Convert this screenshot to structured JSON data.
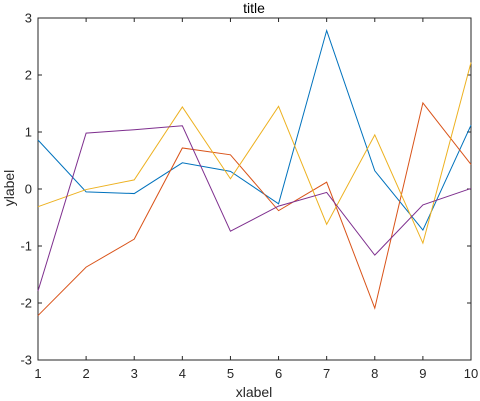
{
  "chart_data": {
    "type": "line",
    "title": "title",
    "xlabel": "xlabel",
    "ylabel": "ylabel",
    "xlim": [
      1,
      10
    ],
    "ylim": [
      -3,
      3
    ],
    "x": [
      1,
      2,
      3,
      4,
      5,
      6,
      7,
      8,
      9,
      10
    ],
    "xticks": [
      "1",
      "2",
      "3",
      "4",
      "5",
      "6",
      "7",
      "8",
      "9",
      "10"
    ],
    "yticks": [
      "-3",
      "-2",
      "-1",
      "0",
      "1",
      "2",
      "3"
    ],
    "grid": false,
    "box": true,
    "series": [
      {
        "color": "#0072BD",
        "values": [
          0.86,
          -0.05,
          -0.08,
          0.46,
          0.31,
          -0.26,
          2.78,
          0.32,
          -0.72,
          1.12
        ]
      },
      {
        "color": "#D95319",
        "values": [
          -2.22,
          -1.37,
          -0.88,
          0.72,
          0.6,
          -0.38,
          0.12,
          -2.09,
          1.51,
          0.43
        ]
      },
      {
        "color": "#EDB120",
        "values": [
          -0.31,
          -0.01,
          0.16,
          1.44,
          0.18,
          1.45,
          -0.62,
          0.95,
          -0.95,
          2.22
        ]
      },
      {
        "color": "#7E2F8E",
        "values": [
          -1.79,
          0.98,
          1.04,
          1.11,
          -0.74,
          -0.3,
          -0.06,
          -1.16,
          -0.28,
          0.01
        ]
      }
    ]
  }
}
